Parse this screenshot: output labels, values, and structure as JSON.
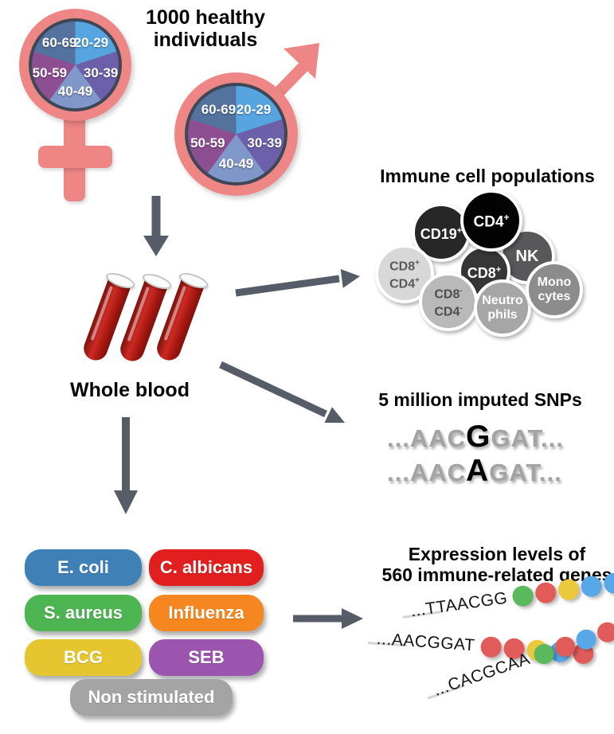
{
  "headline": {
    "line1": "1000 healthy",
    "line2": "individuals"
  },
  "demographics": {
    "age_groups": [
      {
        "label": "20-29",
        "color": "#57a5e0"
      },
      {
        "label": "30-39",
        "color": "#6c60ab"
      },
      {
        "label": "40-49",
        "color": "#8097c9"
      },
      {
        "label": "50-59",
        "color": "#8e4e92"
      },
      {
        "label": "60-69",
        "color": "#54729e"
      }
    ],
    "symbol_color": "#ee8686",
    "pie_border_color": "#3e4755"
  },
  "whole_blood": {
    "label": "Whole blood",
    "tube_count": 3,
    "blood_color": "#b01f17"
  },
  "immune_cells": {
    "title": "Immune cell populations",
    "cells": [
      {
        "id": "nk",
        "bg": "#58585a",
        "fg": "#ffffff",
        "lines": [
          {
            "base": "NK",
            "sup": ""
          }
        ]
      },
      {
        "id": "cd19",
        "bg": "#272727",
        "fg": "#ffffff",
        "lines": [
          {
            "base": "CD19",
            "sup": "+"
          }
        ]
      },
      {
        "id": "cd8",
        "bg": "#363636",
        "fg": "#ffffff",
        "lines": [
          {
            "base": "CD8",
            "sup": "+"
          }
        ]
      },
      {
        "id": "cd4",
        "bg": "#030303",
        "fg": "#ffffff",
        "lines": [
          {
            "base": "CD4",
            "sup": "+"
          }
        ]
      },
      {
        "id": "cd8p-cd4p",
        "bg": "#d8d8d8",
        "fg": "#595959",
        "lines": [
          {
            "base": "CD8",
            "sup": "+"
          },
          {
            "base": "CD4",
            "sup": "+"
          }
        ]
      },
      {
        "id": "cd8n-cd4n",
        "bg": "#b9b9b9",
        "fg": "#4d4d4d",
        "lines": [
          {
            "base": "CD8",
            "sup": "-"
          },
          {
            "base": "CD4",
            "sup": "-"
          }
        ]
      },
      {
        "id": "neutrophils",
        "bg": "#a6a6a6",
        "fg": "#ffffff",
        "lines": [
          {
            "base": "Neutro",
            "sup": ""
          },
          {
            "base": "phils",
            "sup": ""
          }
        ]
      },
      {
        "id": "monocytes",
        "bg": "#8c8c8c",
        "fg": "#ffffff",
        "lines": [
          {
            "base": "Mono",
            "sup": ""
          },
          {
            "base": "cytes",
            "sup": ""
          }
        ]
      }
    ]
  },
  "snps": {
    "title": "5 million imputed SNPs",
    "sequences": [
      {
        "pre": "...AAC",
        "variant": "G",
        "post": "GAT..."
      },
      {
        "pre": "...AAC",
        "variant": "A",
        "post": "GAT..."
      }
    ]
  },
  "stimuli": {
    "pills": [
      {
        "label": "E. coli",
        "color": "#3f80b7"
      },
      {
        "label": "C. albicans",
        "color": "#e11f1f"
      },
      {
        "label": "S. aureus",
        "color": "#4cb451"
      },
      {
        "label": "Influenza",
        "color": "#f6861f"
      },
      {
        "label": "BCG",
        "color": "#e5c530"
      },
      {
        "label": "SEB",
        "color": "#9c55af"
      },
      {
        "label": "Non stimulated",
        "color": "#a4a4a4"
      }
    ]
  },
  "expression": {
    "title_line1": "Expression levels of",
    "title_line2": "560 immune-related genes",
    "dot_colors": {
      "green": "#5cb85c",
      "red": "#e25b5b",
      "yellow": "#ecc83d",
      "blue": "#57a7e9"
    },
    "rows": [
      {
        "seq": "...TTAACGG",
        "dots": [
          "green",
          "red",
          "yellow",
          "blue",
          "blue"
        ]
      },
      {
        "seq": "...AACGGAT",
        "dots": [
          "red",
          "red",
          "yellow",
          "blue",
          "red"
        ]
      },
      {
        "seq": "...CACGCAA",
        "dots": [
          "green",
          "red",
          "blue",
          "red",
          "red"
        ]
      }
    ]
  },
  "arrow_color": "#575d68"
}
